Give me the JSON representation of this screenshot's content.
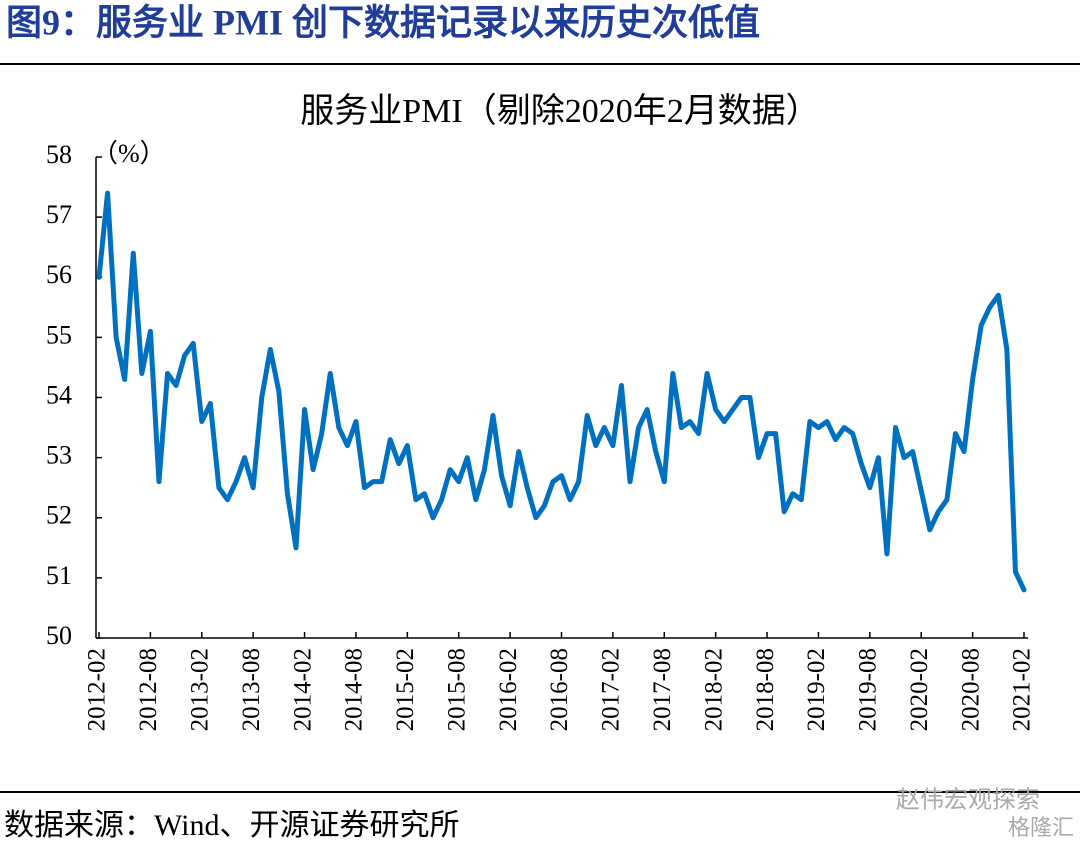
{
  "header": {
    "title": "图9：服务业 PMI 创下数据记录以来历史次低值"
  },
  "chart_data": {
    "type": "line",
    "title": "服务业PMI（剔除2020年2月数据）",
    "y_label": "（%）",
    "color": "#0070c0",
    "x": [
      "2012-02",
      "2012-03",
      "2012-04",
      "2012-05",
      "2012-06",
      "2012-07",
      "2012-08",
      "2012-09",
      "2012-10",
      "2012-11",
      "2012-12",
      "2013-01",
      "2013-02",
      "2013-03",
      "2013-04",
      "2013-05",
      "2013-06",
      "2013-07",
      "2013-08",
      "2013-09",
      "2013-10",
      "2013-11",
      "2013-12",
      "2014-01",
      "2014-02",
      "2014-03",
      "2014-04",
      "2014-05",
      "2014-06",
      "2014-07",
      "2014-08",
      "2014-09",
      "2014-10",
      "2014-11",
      "2014-12",
      "2015-01",
      "2015-02",
      "2015-03",
      "2015-04",
      "2015-05",
      "2015-06",
      "2015-07",
      "2015-08",
      "2015-09",
      "2015-10",
      "2015-11",
      "2015-12",
      "2016-01",
      "2016-02",
      "2016-03",
      "2016-04",
      "2016-05",
      "2016-06",
      "2016-07",
      "2016-08",
      "2016-09",
      "2016-10",
      "2016-11",
      "2016-12",
      "2017-01",
      "2017-02",
      "2017-03",
      "2017-04",
      "2017-05",
      "2017-06",
      "2017-07",
      "2017-08",
      "2017-09",
      "2017-10",
      "2017-11",
      "2017-12",
      "2018-01",
      "2018-02",
      "2018-03",
      "2018-04",
      "2018-05",
      "2018-06",
      "2018-07",
      "2018-08",
      "2018-09",
      "2018-10",
      "2018-11",
      "2018-12",
      "2019-01",
      "2019-02",
      "2019-03",
      "2019-04",
      "2019-05",
      "2019-06",
      "2019-07",
      "2019-08",
      "2019-09",
      "2019-10",
      "2019-11",
      "2019-12",
      "2020-01",
      "2020-03",
      "2020-04",
      "2020-05",
      "2020-06",
      "2020-07",
      "2020-08",
      "2020-09",
      "2020-10",
      "2020-11",
      "2020-12",
      "2021-01",
      "2021-02"
    ],
    "values": [
      56.0,
      57.4,
      55.0,
      54.3,
      56.4,
      54.4,
      55.1,
      52.6,
      54.4,
      54.2,
      54.7,
      54.9,
      53.6,
      53.9,
      52.5,
      52.3,
      52.6,
      53.0,
      52.5,
      54.0,
      54.8,
      54.1,
      52.4,
      51.5,
      53.8,
      52.8,
      53.4,
      54.4,
      53.5,
      53.2,
      53.6,
      52.5,
      52.6,
      52.6,
      53.3,
      52.9,
      53.2,
      52.3,
      52.4,
      52.0,
      52.3,
      52.8,
      52.6,
      53.0,
      52.3,
      52.8,
      53.7,
      52.7,
      52.2,
      53.1,
      52.5,
      52.0,
      52.2,
      52.6,
      52.7,
      52.3,
      52.6,
      53.7,
      53.2,
      53.5,
      53.2,
      54.2,
      52.6,
      53.5,
      53.8,
      53.1,
      52.6,
      54.4,
      53.5,
      53.6,
      53.4,
      54.4,
      53.8,
      53.6,
      53.8,
      54.0,
      54.0,
      53.0,
      53.4,
      53.4,
      52.1,
      52.4,
      52.3,
      53.6,
      53.5,
      53.6,
      53.3,
      53.5,
      53.4,
      52.9,
      52.5,
      53.0,
      51.4,
      53.5,
      53.0,
      53.1,
      51.8,
      52.1,
      52.3,
      53.4,
      53.1,
      54.3,
      55.2,
      55.5,
      55.7,
      54.8,
      51.1,
      50.8
    ],
    "xlim": [
      "2012-02",
      "2021-02"
    ],
    "xticks": [
      "2012-02",
      "2012-08",
      "2013-02",
      "2013-08",
      "2014-02",
      "2014-08",
      "2015-02",
      "2015-08",
      "2016-02",
      "2016-08",
      "2017-02",
      "2017-08",
      "2018-02",
      "2018-08",
      "2019-02",
      "2019-08",
      "2020-02",
      "2020-08",
      "2021-02"
    ],
    "ylim": [
      50,
      58
    ],
    "yticks": [
      50,
      51,
      52,
      53,
      54,
      55,
      56,
      57,
      58
    ]
  },
  "footer": {
    "source": "数据来源：Wind、开源证券研究所",
    "watermark": "赵伟宏观探索",
    "watermark2": "格隆汇"
  }
}
